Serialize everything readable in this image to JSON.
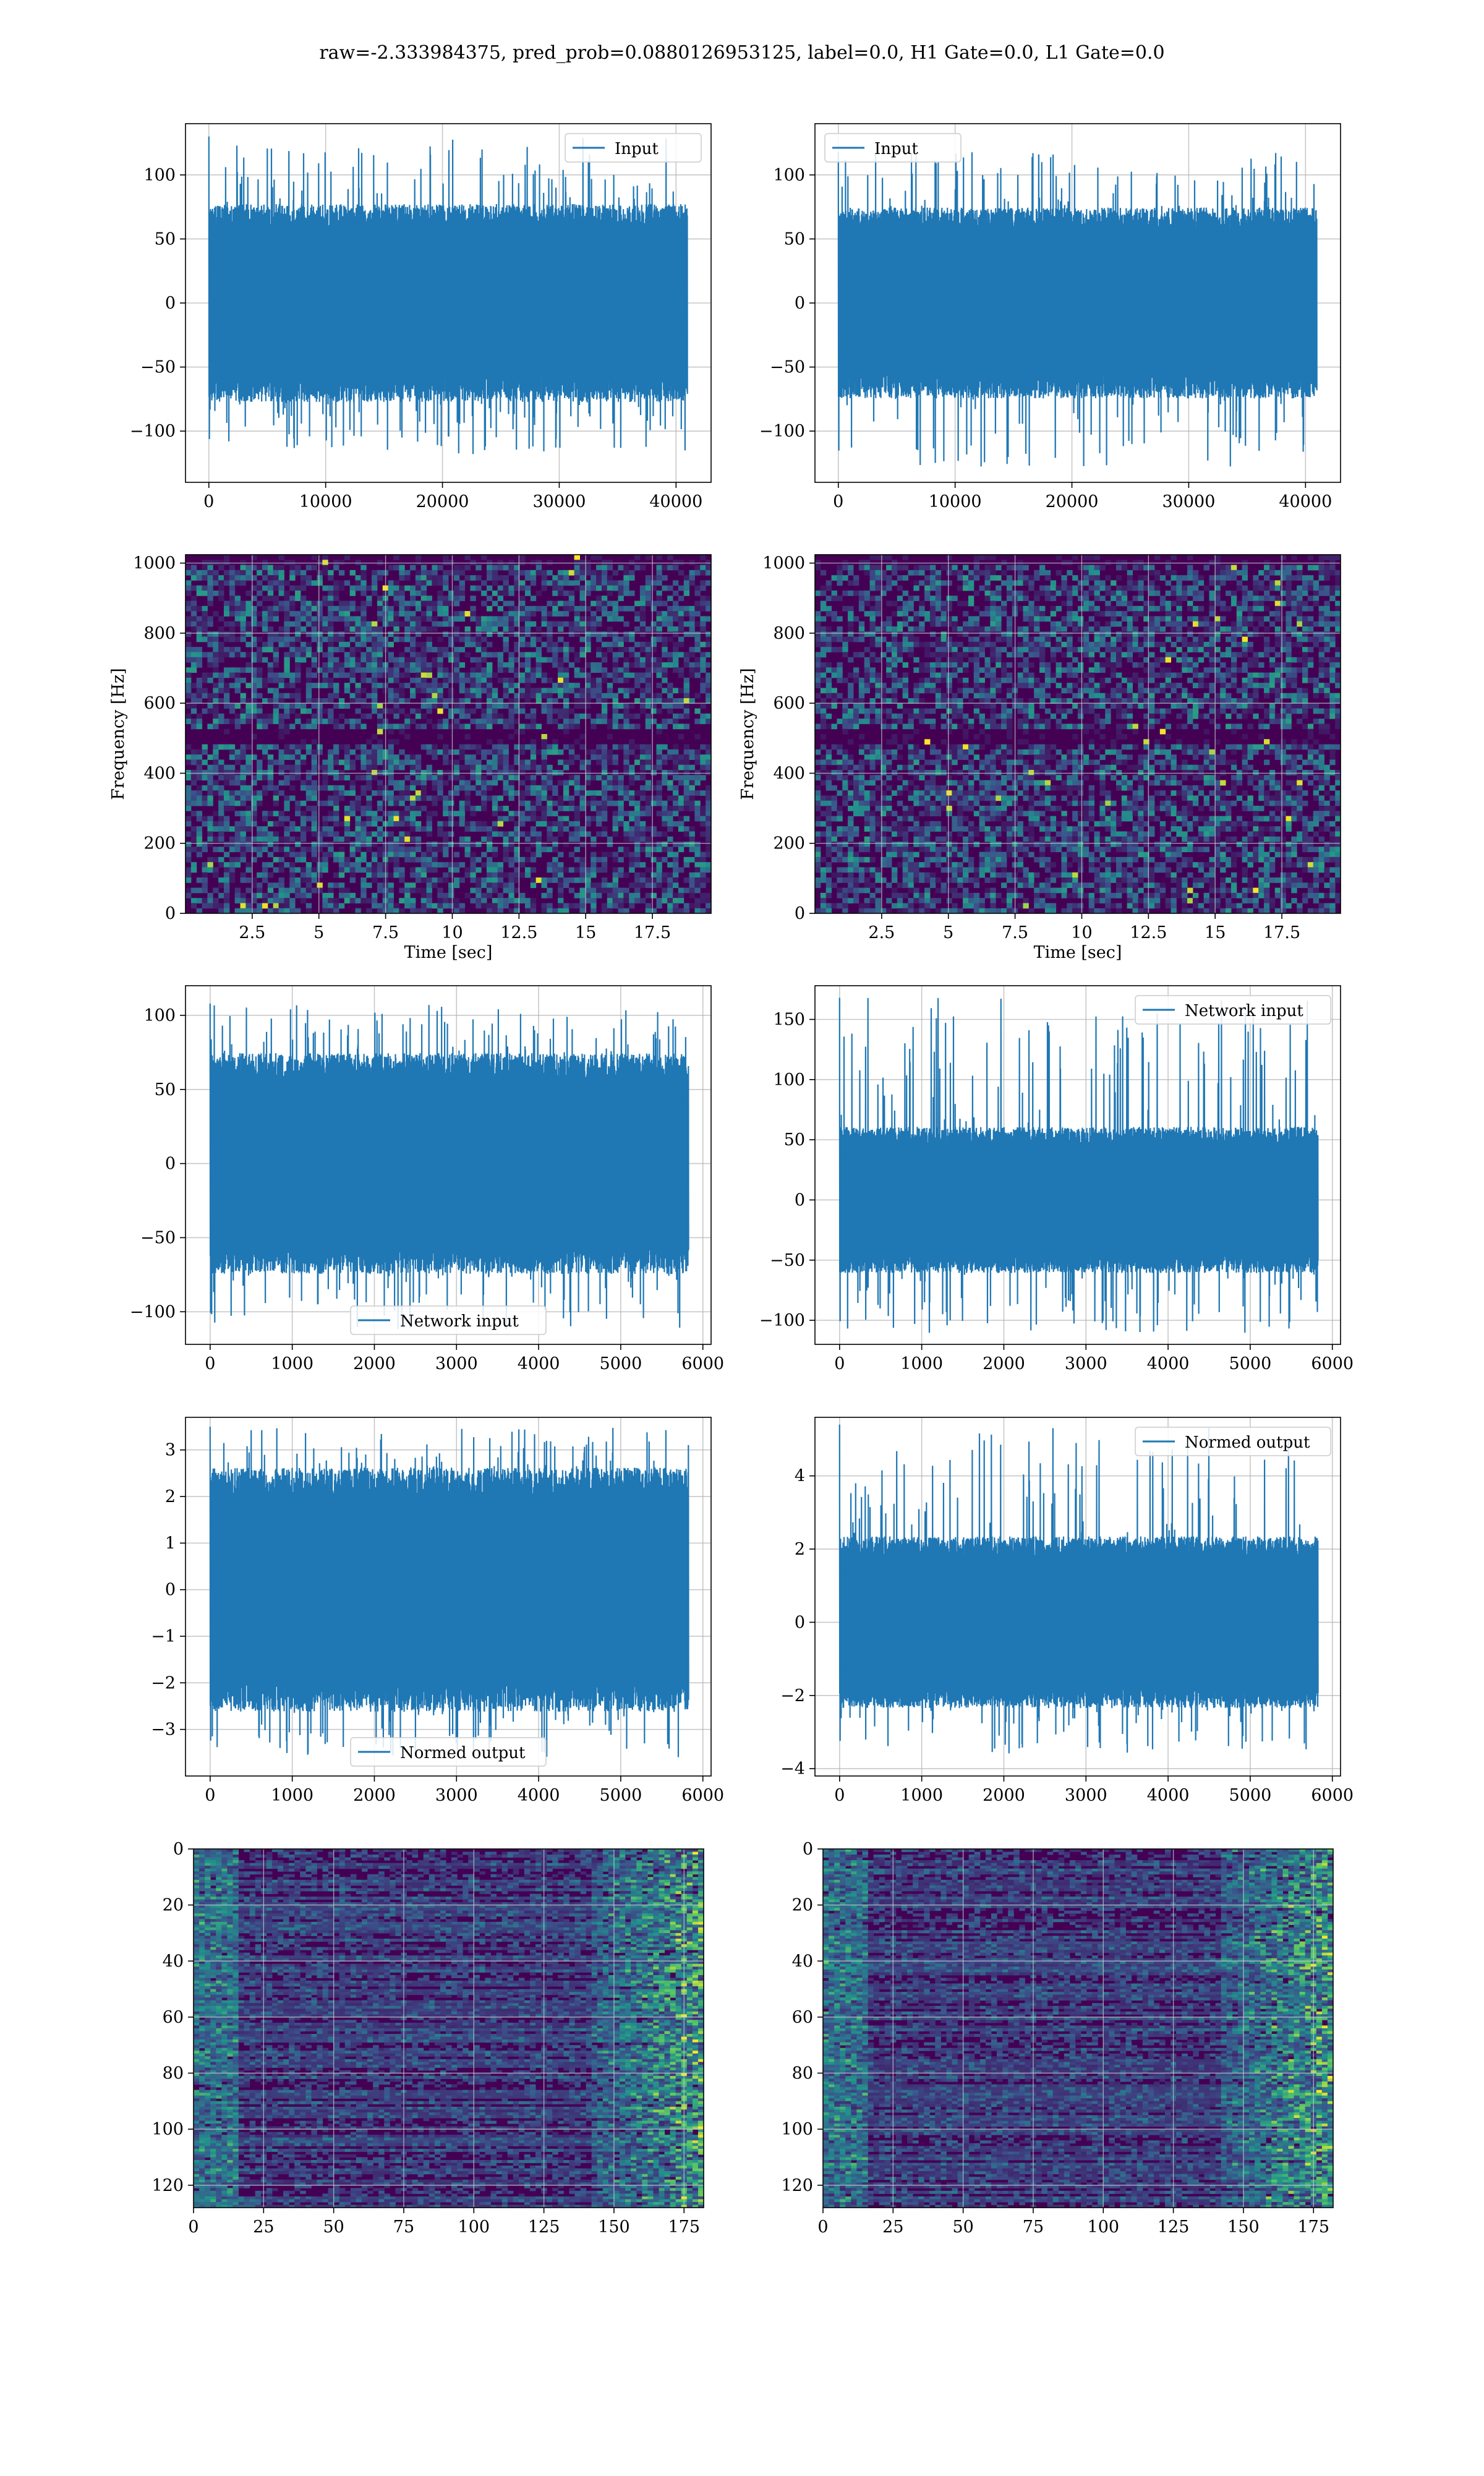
{
  "figure": {
    "suptitle": "raw=-2.333984375, pred_prob=0.0880126953125, label=0.0, H1 Gate=0.0, L1 Gate=0.0"
  },
  "colors": {
    "line": "#1f77b4",
    "grid": "#b0b0b0",
    "viridis_dark": "#440154",
    "viridis_mid": "#21918c",
    "viridis_bright": "#fde725"
  },
  "chart_data": [
    {
      "id": "h1-input",
      "type": "line",
      "title": "",
      "xlabel": "",
      "ylabel": "",
      "xlim": [
        -2000,
        43000
      ],
      "ylim": [
        -140,
        140
      ],
      "xticks": [
        0,
        10000,
        20000,
        30000,
        40000
      ],
      "yticks": [
        -100,
        -50,
        0,
        50,
        100
      ],
      "grid": true,
      "legend": "top-right",
      "series": [
        {
          "name": "Input",
          "n": 40960,
          "mean": 0,
          "std": 28,
          "peak_min": -118,
          "peak_max": 130
        }
      ]
    },
    {
      "id": "l1-input",
      "type": "line",
      "title": "",
      "xlabel": "",
      "ylabel": "",
      "xlim": [
        -2000,
        43000
      ],
      "ylim": [
        -140,
        140
      ],
      "xticks": [
        0,
        10000,
        20000,
        30000,
        40000
      ],
      "yticks": [
        -100,
        -50,
        0,
        50,
        100
      ],
      "grid": true,
      "legend": "top-left",
      "series": [
        {
          "name": "Input",
          "n": 40960,
          "mean": 0,
          "std": 27,
          "peak_min": -128,
          "peak_max": 118
        }
      ]
    },
    {
      "id": "h1-spectrogram",
      "type": "heatmap",
      "title": "",
      "xlabel": "Time [sec]",
      "ylabel": "Frequency [Hz]",
      "xlim": [
        0,
        19.7
      ],
      "ylim": [
        0,
        1024
      ],
      "xticks": [
        2.5,
        5.0,
        7.5,
        10.0,
        12.5,
        15.0,
        17.5
      ],
      "yticks": [
        0,
        200,
        400,
        600,
        800,
        1000
      ],
      "grid": true,
      "colormap": "viridis",
      "dark_band_hz": 500
    },
    {
      "id": "l1-spectrogram",
      "type": "heatmap",
      "title": "",
      "xlabel": "Time [sec]",
      "ylabel": "Frequency [Hz]",
      "xlim": [
        0,
        19.7
      ],
      "ylim": [
        0,
        1024
      ],
      "xticks": [
        2.5,
        5.0,
        7.5,
        10.0,
        12.5,
        15.0,
        17.5
      ],
      "yticks": [
        0,
        200,
        400,
        600,
        800,
        1000
      ],
      "grid": true,
      "colormap": "viridis",
      "dark_band_hz": 500
    },
    {
      "id": "h1-network-input",
      "type": "line",
      "title": "",
      "xlabel": "",
      "ylabel": "",
      "xlim": [
        -300,
        6100
      ],
      "ylim": [
        -122,
        120
      ],
      "xticks": [
        0,
        1000,
        2000,
        3000,
        4000,
        5000,
        6000
      ],
      "yticks": [
        -100,
        -50,
        0,
        50,
        100
      ],
      "grid": true,
      "legend": "bottom-center",
      "series": [
        {
          "name": "Network input",
          "n": 5824,
          "mean": 0,
          "std": 27,
          "peak_min": -112,
          "peak_max": 108
        }
      ]
    },
    {
      "id": "l1-network-input",
      "type": "line",
      "title": "",
      "xlabel": "",
      "ylabel": "",
      "xlim": [
        -300,
        6100
      ],
      "ylim": [
        -120,
        178
      ],
      "xticks": [
        0,
        1000,
        2000,
        3000,
        4000,
        5000,
        6000
      ],
      "yticks": [
        -100,
        -50,
        0,
        50,
        100,
        150
      ],
      "grid": true,
      "legend": "top-right",
      "series": [
        {
          "name": "Network input",
          "n": 5824,
          "mean": 0,
          "std": 22,
          "peak_min": -112,
          "peak_max": 168
        }
      ]
    },
    {
      "id": "h1-normed-output",
      "type": "line",
      "title": "",
      "xlabel": "",
      "ylabel": "",
      "xlim": [
        -300,
        6100
      ],
      "ylim": [
        -4.0,
        3.7
      ],
      "xticks": [
        0,
        1000,
        2000,
        3000,
        4000,
        5000,
        6000
      ],
      "yticks": [
        -3,
        -2,
        -1,
        0,
        1,
        2,
        3
      ],
      "grid": true,
      "legend": "bottom-center",
      "series": [
        {
          "name": "Normed output",
          "n": 5824,
          "mean": 0,
          "std": 0.95,
          "peak_min": -3.6,
          "peak_max": 3.5
        }
      ]
    },
    {
      "id": "l1-normed-output",
      "type": "line",
      "title": "",
      "xlabel": "",
      "ylabel": "",
      "xlim": [
        -300,
        6100
      ],
      "ylim": [
        -4.2,
        5.6
      ],
      "xticks": [
        0,
        1000,
        2000,
        3000,
        4000,
        5000,
        6000
      ],
      "yticks": [
        -4,
        -2,
        0,
        2,
        4
      ],
      "grid": true,
      "legend": "top-right",
      "series": [
        {
          "name": "Normed output",
          "n": 5824,
          "mean": 0,
          "std": 0.85,
          "peak_min": -3.6,
          "peak_max": 5.4
        }
      ]
    },
    {
      "id": "h1-feature-map",
      "type": "heatmap",
      "title": "",
      "xlabel": "",
      "ylabel": "",
      "xlim": [
        0,
        182
      ],
      "ylim": [
        128,
        0
      ],
      "xticks": [
        0,
        25,
        50,
        75,
        100,
        125,
        150,
        175
      ],
      "yticks": [
        0,
        20,
        40,
        60,
        80,
        100,
        120
      ],
      "grid": true,
      "colormap": "viridis",
      "rows": 128,
      "cols": 182
    },
    {
      "id": "l1-feature-map",
      "type": "heatmap",
      "title": "",
      "xlabel": "",
      "ylabel": "",
      "xlim": [
        0,
        182
      ],
      "ylim": [
        128,
        0
      ],
      "xticks": [
        0,
        25,
        50,
        75,
        100,
        125,
        150,
        175
      ],
      "yticks": [
        0,
        20,
        40,
        60,
        80,
        100,
        120
      ],
      "grid": true,
      "colormap": "viridis",
      "rows": 128,
      "cols": 182
    }
  ]
}
